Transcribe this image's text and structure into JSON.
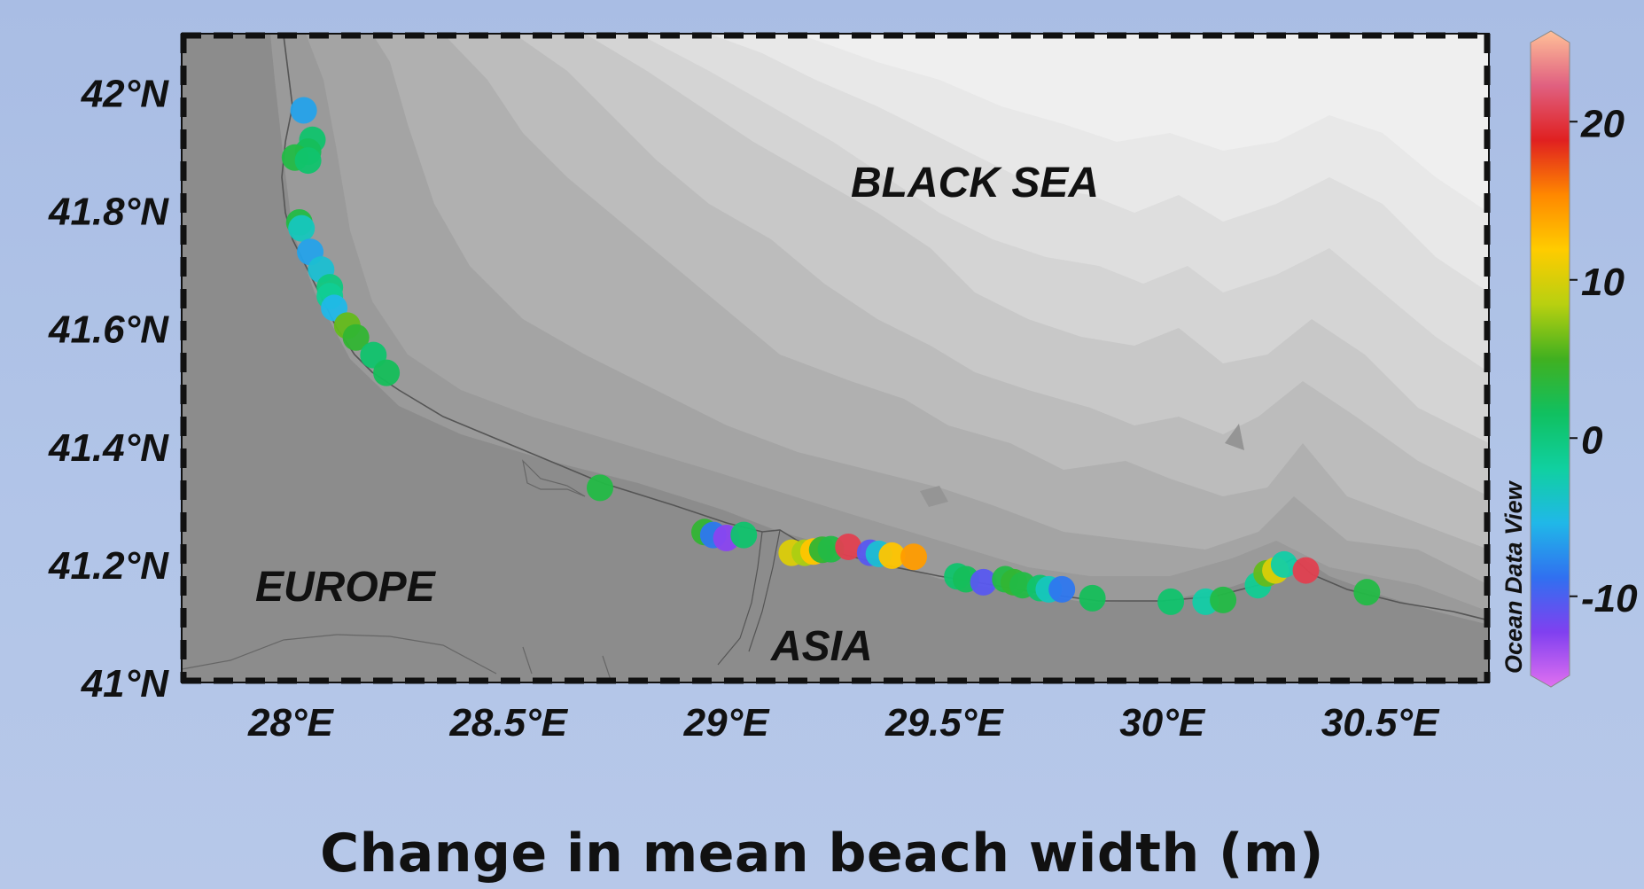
{
  "map": {
    "sea_label": "BLACK SEA",
    "land_labels": [
      "EUROPE",
      "ASIA"
    ],
    "lat_ticks": [
      {
        "value": 42.0,
        "label": "42°N"
      },
      {
        "value": 41.8,
        "label": "41.8°N"
      },
      {
        "value": 41.6,
        "label": "41.6°N"
      },
      {
        "value": 41.4,
        "label": "41.4°N"
      },
      {
        "value": 41.2,
        "label": "41.2°N"
      },
      {
        "value": 41.0,
        "label": "41°N"
      }
    ],
    "lon_ticks": [
      {
        "value": 28.0,
        "label": "28°E"
      },
      {
        "value": 28.5,
        "label": "28.5°E"
      },
      {
        "value": 29.0,
        "label": "29°E"
      },
      {
        "value": 29.5,
        "label": "29.5°E"
      },
      {
        "value": 30.0,
        "label": "30°E"
      },
      {
        "value": 30.5,
        "label": "30.5°E"
      }
    ],
    "lon_range": [
      27.75,
      30.75
    ],
    "lat_range": [
      41.0,
      42.1
    ],
    "colorbar": {
      "title": "Ocean Data View",
      "range": [
        -15,
        25
      ],
      "ticks": [
        {
          "value": 20,
          "label": "20"
        },
        {
          "value": 10,
          "label": "10"
        },
        {
          "value": 0,
          "label": "0"
        },
        {
          "value": -10,
          "label": "-10"
        }
      ],
      "stops": [
        "#e070f0",
        "#8040f0",
        "#3070f0",
        "#20b8e8",
        "#10d0a0",
        "#10c060",
        "#40b020",
        "#b8d010",
        "#ffcc00",
        "#ff8800",
        "#e02020",
        "#e06080",
        "#ffc098"
      ]
    },
    "points": [
      {
        "lon": 28.03,
        "lat": 41.97,
        "value": -6
      },
      {
        "lon": 28.05,
        "lat": 41.92,
        "value": 1
      },
      {
        "lon": 28.04,
        "lat": 41.9,
        "value": 2
      },
      {
        "lon": 28.01,
        "lat": 41.89,
        "value": 3
      },
      {
        "lon": 28.04,
        "lat": 41.885,
        "value": 1
      },
      {
        "lon": 28.02,
        "lat": 41.78,
        "value": 3
      },
      {
        "lon": 28.025,
        "lat": 41.77,
        "value": -3
      },
      {
        "lon": 28.045,
        "lat": 41.73,
        "value": -6
      },
      {
        "lon": 28.07,
        "lat": 41.7,
        "value": -4
      },
      {
        "lon": 28.09,
        "lat": 41.67,
        "value": 0
      },
      {
        "lon": 28.09,
        "lat": 41.655,
        "value": -1
      },
      {
        "lon": 28.1,
        "lat": 41.635,
        "value": -5
      },
      {
        "lon": 28.13,
        "lat": 41.605,
        "value": 6
      },
      {
        "lon": 28.15,
        "lat": 41.585,
        "value": 4
      },
      {
        "lon": 28.19,
        "lat": 41.555,
        "value": 1
      },
      {
        "lon": 28.22,
        "lat": 41.525,
        "value": 2
      },
      {
        "lon": 28.71,
        "lat": 41.33,
        "value": 3
      },
      {
        "lon": 28.95,
        "lat": 41.255,
        "value": 4
      },
      {
        "lon": 28.97,
        "lat": 41.25,
        "value": -8
      },
      {
        "lon": 29.0,
        "lat": 41.245,
        "value": -12
      },
      {
        "lon": 29.04,
        "lat": 41.25,
        "value": 1
      },
      {
        "lon": 29.15,
        "lat": 41.22,
        "value": 10
      },
      {
        "lon": 29.18,
        "lat": 41.22,
        "value": 8
      },
      {
        "lon": 29.2,
        "lat": 41.222,
        "value": 12
      },
      {
        "lon": 29.22,
        "lat": 41.225,
        "value": 4
      },
      {
        "lon": 29.24,
        "lat": 41.226,
        "value": 3
      },
      {
        "lon": 29.28,
        "lat": 41.23,
        "value": 20
      },
      {
        "lon": 29.33,
        "lat": 41.22,
        "value": -10
      },
      {
        "lon": 29.35,
        "lat": 41.218,
        "value": -4
      },
      {
        "lon": 29.38,
        "lat": 41.215,
        "value": 12
      },
      {
        "lon": 29.43,
        "lat": 41.213,
        "value": 14
      },
      {
        "lon": 29.53,
        "lat": 41.18,
        "value": 1
      },
      {
        "lon": 29.55,
        "lat": 41.175,
        "value": 2
      },
      {
        "lon": 29.59,
        "lat": 41.17,
        "value": -10
      },
      {
        "lon": 29.64,
        "lat": 41.175,
        "value": 3
      },
      {
        "lon": 29.66,
        "lat": 41.17,
        "value": 4
      },
      {
        "lon": 29.68,
        "lat": 41.165,
        "value": 3
      },
      {
        "lon": 29.72,
        "lat": 41.16,
        "value": 1
      },
      {
        "lon": 29.74,
        "lat": 41.158,
        "value": -3
      },
      {
        "lon": 29.77,
        "lat": 41.158,
        "value": -8
      },
      {
        "lon": 29.84,
        "lat": 41.143,
        "value": 2
      },
      {
        "lon": 30.02,
        "lat": 41.137,
        "value": 1
      },
      {
        "lon": 30.1,
        "lat": 41.137,
        "value": -2
      },
      {
        "lon": 30.14,
        "lat": 41.14,
        "value": 3
      },
      {
        "lon": 30.22,
        "lat": 41.165,
        "value": -1
      },
      {
        "lon": 30.24,
        "lat": 41.185,
        "value": 6
      },
      {
        "lon": 30.26,
        "lat": 41.19,
        "value": 10
      },
      {
        "lon": 30.28,
        "lat": 41.2,
        "value": -2
      },
      {
        "lon": 30.33,
        "lat": 41.19,
        "value": 20
      },
      {
        "lon": 30.47,
        "lat": 41.153,
        "value": 3
      }
    ]
  },
  "caption": "Change in mean beach width (m)"
}
